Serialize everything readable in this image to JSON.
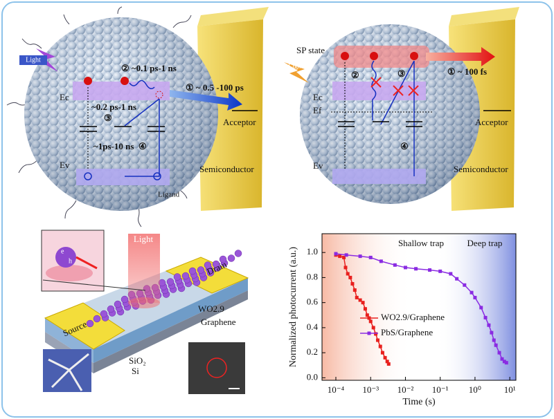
{
  "panel_a": {
    "light": "Light",
    "step2": "② ~0.1 ps-1 ns",
    "transfer": "① ~ 0.5 -100 ps",
    "ec": "Ec",
    "ev": "Ev",
    "relax": "~0.2 ps-1 ns",
    "step3": "③",
    "trap": "~1ps-10 ns",
    "step4": "④",
    "acceptor": "Acceptor",
    "semiconductor": "Semiconductor",
    "ligand": "Ligand"
  },
  "panel_b": {
    "sp_state": "SP state",
    "light": "Light",
    "step2": "②",
    "step3": "③",
    "transfer": "① ~ 100 fs",
    "ec": "Ec",
    "ef": "Ef",
    "ev": "Ev",
    "step4": "④",
    "acceptor": "Acceptor",
    "semiconductor": "Semiconductor"
  },
  "panel_c": {
    "light": "Light",
    "drain": "Drain",
    "source": "Source",
    "wo": "WO2.9",
    "graphene": "Graphene",
    "sio2": "SiO₂",
    "si": "Si",
    "electron": "e",
    "hole": "h"
  },
  "chart_data": {
    "type": "line",
    "xlabel": "Time (s)",
    "ylabel": "Normalized photocurrent (a.u.)",
    "annotations": [
      "Shallow trap",
      "Deep trap"
    ],
    "xscale": "log",
    "xlim": [
      4e-05,
      15
    ],
    "ylim": [
      -0.02,
      1.15
    ],
    "xticks": [
      {
        "value": 0.0001,
        "label": "10⁻⁴"
      },
      {
        "value": 0.001,
        "label": "10⁻³"
      },
      {
        "value": 0.01,
        "label": "10⁻²"
      },
      {
        "value": 0.1,
        "label": "10⁻¹"
      },
      {
        "value": 1,
        "label": "10⁰"
      },
      {
        "value": 10,
        "label": "10¹"
      }
    ],
    "yticks": [
      {
        "value": 0,
        "label": "0.0"
      },
      0.2,
      0.4,
      0.6,
      0.8,
      {
        "value": 1,
        "label": "1.0"
      }
    ],
    "series": [
      {
        "name": "WO2.9/Graphene",
        "color": "#e8201e",
        "x": [
          0.0001,
          0.00013,
          0.00017,
          0.00019,
          0.00022,
          0.00026,
          0.0003,
          0.00035,
          0.0004,
          0.0005,
          0.0006,
          0.0007,
          0.0008,
          0.001,
          0.0012,
          0.0014,
          0.0016,
          0.0019,
          0.0022,
          0.0026,
          0.003,
          0.0033
        ],
        "values": [
          0.98,
          0.97,
          0.96,
          0.88,
          0.83,
          0.8,
          0.75,
          0.7,
          0.64,
          0.62,
          0.6,
          0.55,
          0.5,
          0.45,
          0.4,
          0.35,
          0.3,
          0.25,
          0.2,
          0.16,
          0.13,
          0.11
        ]
      },
      {
        "name": "PbS/Graphene",
        "color": "#8a2be2",
        "x": [
          0.0001,
          0.0002,
          0.0005,
          0.001,
          0.002,
          0.005,
          0.01,
          0.02,
          0.05,
          0.1,
          0.2,
          0.3,
          0.5,
          0.8,
          1,
          1.5,
          2,
          2.5,
          3,
          3.5,
          4,
          5,
          6,
          7,
          8
        ],
        "values": [
          0.99,
          0.98,
          0.97,
          0.96,
          0.93,
          0.9,
          0.88,
          0.87,
          0.86,
          0.85,
          0.83,
          0.79,
          0.74,
          0.68,
          0.64,
          0.56,
          0.48,
          0.42,
          0.36,
          0.3,
          0.26,
          0.2,
          0.15,
          0.13,
          0.12
        ]
      }
    ]
  }
}
